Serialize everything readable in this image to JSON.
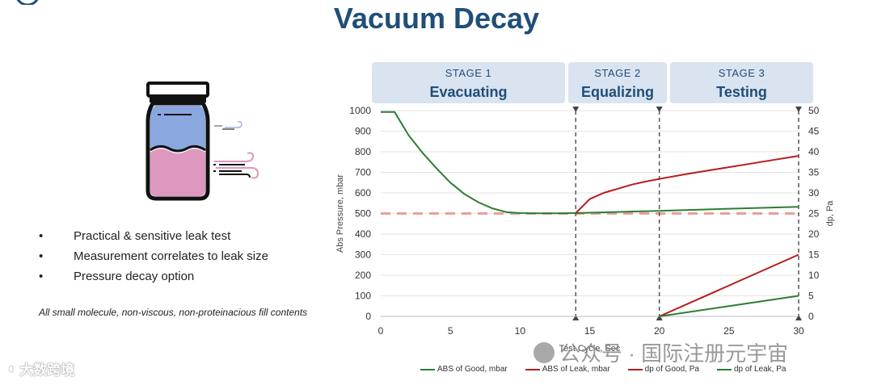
{
  "page": {
    "title": "Vacuum Decay",
    "bullets": [
      "Practical & sensitive leak test",
      "Measurement correlates to leak size",
      "Pressure decay option"
    ],
    "footnote": "All small molecule, non-viscous, non-proteinacious fill contents"
  },
  "stages": [
    {
      "number": "STAGE 1",
      "name": "Evacuating"
    },
    {
      "number": "STAGE 2",
      "name": "Equalizing"
    },
    {
      "number": "STAGE 3",
      "name": "Testing"
    }
  ],
  "watermarks": {
    "left": "大数跨境",
    "right": "公众号 · 国际注册元宇宙"
  },
  "colors": {
    "title": "#1f4e79",
    "stage_bg": "#dae3f0",
    "good": "#2e7d32",
    "leak": "#b71c1c",
    "reference": "#e8a09a"
  },
  "chart_data": {
    "type": "line",
    "title": "",
    "xlabel": "Test Cycle, Sec",
    "ylabel": "Abs Pressure, mbar",
    "y2label": "dp, Pa",
    "xlim": [
      0,
      30
    ],
    "ylim": [
      0,
      1000
    ],
    "y2lim": [
      0,
      50
    ],
    "x_ticks": [
      0,
      5,
      10,
      15,
      20,
      25,
      30
    ],
    "y_ticks": [
      0,
      100,
      200,
      300,
      400,
      500,
      600,
      700,
      800,
      900,
      1000
    ],
    "y2_ticks": [
      0,
      5,
      10,
      15,
      20,
      25,
      30,
      35,
      40,
      45,
      50
    ],
    "grid": true,
    "legend_position": "bottom",
    "stage_boundaries": [
      14,
      20,
      30
    ],
    "reference_line": {
      "y": 500,
      "style": "dashed"
    },
    "series": [
      {
        "name": "ABS of Good, mbar",
        "axis": "left",
        "color": "#2e7d32",
        "x": [
          0,
          1,
          2,
          3,
          4,
          5,
          6,
          7,
          8,
          9,
          10,
          11,
          12,
          13,
          14,
          20,
          25,
          30
        ],
        "y": [
          993,
          993,
          880,
          795,
          720,
          650,
          595,
          555,
          525,
          507,
          502,
          501,
          501,
          501,
          502,
          513,
          523,
          532
        ]
      },
      {
        "name": "ABS of Leak, mbar",
        "axis": "left",
        "color": "#b71c1c",
        "x": [
          14,
          15,
          16,
          17,
          18,
          19,
          20,
          22,
          24,
          26,
          28,
          30
        ],
        "y": [
          502,
          570,
          600,
          620,
          640,
          655,
          668,
          692,
          714,
          736,
          758,
          780
        ]
      },
      {
        "name": "dp of Good, Pa",
        "axis": "right",
        "color": "#b71c1c",
        "x": [
          20,
          30
        ],
        "y": [
          0,
          15
        ]
      },
      {
        "name": "dp of Leak, Pa",
        "axis": "right",
        "color": "#2e7d32",
        "x": [
          20,
          30
        ],
        "y": [
          0,
          5
        ]
      }
    ]
  }
}
